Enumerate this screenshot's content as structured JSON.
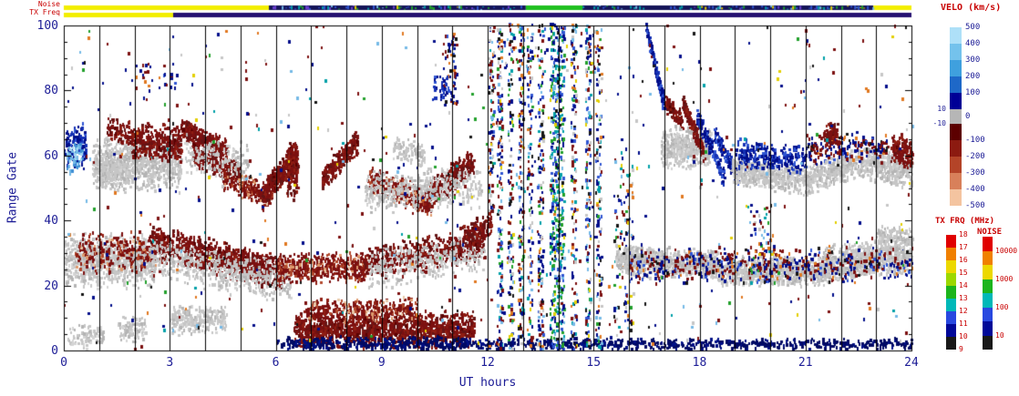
{
  "strips": {
    "noise": {
      "label": "Noise",
      "segments": [
        [
          0.0,
          0.242,
          "#f2ee00"
        ],
        [
          0.242,
          0.545,
          "#141458"
        ],
        [
          0.545,
          0.612,
          "#20c020"
        ],
        [
          0.612,
          0.955,
          "#141458"
        ],
        [
          0.955,
          1.0,
          "#f2ee00"
        ]
      ],
      "speckle_regions": [
        [
          0.242,
          0.545
        ],
        [
          0.612,
          0.955
        ]
      ]
    },
    "tx": {
      "label": "TX Freq",
      "segments": [
        [
          0.0,
          0.129,
          "#f2ee00"
        ],
        [
          0.129,
          1.0,
          "#241070"
        ]
      ],
      "speckle_regions": []
    },
    "speckle_palette": [
      [
        "#2f55d2",
        30
      ],
      [
        "#00a0a8",
        20
      ],
      [
        "#e3cf00",
        10
      ],
      [
        "#22a02c",
        15
      ],
      [
        "#6a3fd0",
        10
      ],
      [
        "#74b9e6",
        15
      ]
    ]
  },
  "colorbars": {
    "velo": {
      "title": "VELO (km/s)",
      "segments": [
        {
          "c": "#aee0f8",
          "h": 18
        },
        {
          "c": "#74c2ec",
          "h": 18
        },
        {
          "c": "#3fa0de",
          "h": 18
        },
        {
          "c": "#1e68c8",
          "h": 18
        },
        {
          "c": "#000096",
          "h": 18
        },
        {
          "c": "#b6b6b6",
          "h": 16
        },
        {
          "c": "#5c0000",
          "h": 18
        },
        {
          "c": "#8c1a10",
          "h": 18
        },
        {
          "c": "#b44428",
          "h": 18
        },
        {
          "c": "#d8805a",
          "h": 18
        },
        {
          "c": "#f4c4a0",
          "h": 18
        }
      ],
      "right_labels": [
        {
          "t": "500",
          "off": 0
        },
        {
          "t": "400",
          "off": 18
        },
        {
          "t": "300",
          "off": 36
        },
        {
          "t": "200",
          "off": 54
        },
        {
          "t": "100",
          "off": 72
        },
        {
          "t": "0",
          "off": 98
        },
        {
          "t": "-100",
          "off": 124
        },
        {
          "t": "-200",
          "off": 142
        },
        {
          "t": "-300",
          "off": 160
        },
        {
          "t": "-400",
          "off": 178
        },
        {
          "t": "-500",
          "off": 196
        }
      ],
      "left_labels": [
        {
          "t": "10",
          "off": 90
        },
        {
          "t": "-10",
          "off": 106
        }
      ]
    },
    "txfrq": {
      "title": "TX FRQ (MHz)",
      "segments": [
        {
          "c": "#e00000",
          "h": 14
        },
        {
          "c": "#f08000",
          "h": 14
        },
        {
          "c": "#ecd800",
          "h": 14
        },
        {
          "c": "#9cd800",
          "h": 14
        },
        {
          "c": "#1cb41c",
          "h": 14
        },
        {
          "c": "#00b8b8",
          "h": 14
        },
        {
          "c": "#2848e0",
          "h": 14
        },
        {
          "c": "#000898",
          "h": 14
        },
        {
          "c": "#181818",
          "h": 14
        }
      ],
      "labels": [
        {
          "t": "18",
          "off": 0
        },
        {
          "t": "17",
          "off": 14
        },
        {
          "t": "16",
          "off": 28
        },
        {
          "t": "15",
          "off": 42
        },
        {
          "t": "14",
          "off": 56
        },
        {
          "t": "13",
          "off": 70
        },
        {
          "t": "12",
          "off": 84
        },
        {
          "t": "11",
          "off": 98
        },
        {
          "t": "10",
          "off": 112
        },
        {
          "t": "9",
          "off": 126
        }
      ]
    },
    "noise": {
      "title": "NOISE",
      "segments": [
        {
          "c": "#e00000",
          "h": 15.5
        },
        {
          "c": "#f08000",
          "h": 15.5
        },
        {
          "c": "#ecd800",
          "h": 15.5
        },
        {
          "c": "#1cb41c",
          "h": 15.5
        },
        {
          "c": "#00b8b8",
          "h": 15.5
        },
        {
          "c": "#2848e0",
          "h": 15.5
        },
        {
          "c": "#000898",
          "h": 15.5
        },
        {
          "c": "#181818",
          "h": 15.5
        }
      ],
      "labels": [
        {
          "t": "10000",
          "off": 15.5
        },
        {
          "t": "1000",
          "off": 46.5
        },
        {
          "t": "100",
          "off": 77.5
        },
        {
          "t": "10",
          "off": 108.5
        }
      ]
    }
  },
  "chart_data": {
    "type": "scatter",
    "title": "",
    "xlabel": "UT hours",
    "ylabel": "Range Gate",
    "xlim": [
      0,
      24
    ],
    "ylim": [
      0,
      100
    ],
    "x_ticks": [
      0,
      3,
      6,
      9,
      12,
      15,
      18,
      21,
      24
    ],
    "y_ticks": [
      0,
      20,
      40,
      60,
      80,
      100
    ],
    "hour_gridlines": true,
    "legend_scales": {
      "velocity_km_s": [
        500,
        400,
        300,
        200,
        100,
        10,
        -10,
        0,
        -100,
        -200,
        -300,
        -400,
        -500
      ],
      "tx_frq_mhz": [
        18,
        17,
        16,
        15,
        14,
        13,
        12,
        11,
        10,
        9
      ],
      "noise": [
        10000,
        1000,
        100,
        10
      ]
    },
    "palettes": {
      "gs": [
        [
          "#c6c6c6",
          60
        ],
        [
          "#b4b4b4",
          25
        ],
        [
          "#d4d4d4",
          15
        ]
      ],
      "nr": [
        [
          "#7c1010",
          55
        ],
        [
          "#641414",
          20
        ],
        [
          "#8f1d12",
          20
        ],
        [
          "#5a0000",
          5
        ]
      ],
      "nrm": [
        [
          "#7c1010",
          55
        ],
        [
          "#8f1d12",
          20
        ],
        [
          "#b24a2e",
          12
        ],
        [
          "#de9a6e",
          8
        ],
        [
          "#e8c8a8",
          5
        ]
      ],
      "pb": [
        [
          "#000d8a",
          55
        ],
        [
          "#1430b4",
          25
        ],
        [
          "#2f55d2",
          20
        ]
      ],
      "pbl": [
        [
          "#3f8fd4",
          40
        ],
        [
          "#74b9e6",
          35
        ],
        [
          "#a6d9f2",
          25
        ]
      ],
      "nv": [
        [
          "#000a64",
          70
        ],
        [
          "#001086",
          30
        ]
      ],
      "mx": [
        [
          "#7c1010",
          18
        ],
        [
          "#000d8a",
          22
        ],
        [
          "#2f55d2",
          10
        ],
        [
          "#74b9e6",
          8
        ],
        [
          "#e07820",
          7
        ],
        [
          "#e3cf00",
          5
        ],
        [
          "#22a02c",
          6
        ],
        [
          "#00a0a8",
          6
        ],
        [
          "#151515",
          8
        ],
        [
          "#c6c6c6",
          10
        ]
      ],
      "mxg": [
        [
          "#22a02c",
          25
        ],
        [
          "#00a0a8",
          18
        ],
        [
          "#2f55d2",
          18
        ],
        [
          "#000d8a",
          15
        ],
        [
          "#74b9e6",
          10
        ],
        [
          "#e3cf00",
          6
        ],
        [
          "#151515",
          8
        ]
      ],
      "rb": [
        [
          "#7c1010",
          40
        ],
        [
          "#000d8a",
          35
        ],
        [
          "#2f55d2",
          10
        ],
        [
          "#151515",
          7
        ],
        [
          "#e07820",
          8
        ]
      ],
      "sp": [
        [
          "#7c1010",
          26
        ],
        [
          "#000d8a",
          26
        ],
        [
          "#74b9e6",
          8
        ],
        [
          "#e07820",
          7
        ],
        [
          "#151515",
          8
        ],
        [
          "#c6c6c6",
          11
        ],
        [
          "#00a0a8",
          5
        ],
        [
          "#22a02c",
          5
        ],
        [
          "#e3cf00",
          4
        ]
      ]
    },
    "cluster_fields": [
      "t_start",
      "t_end",
      "gate_start",
      "gate_end",
      "gate_spread",
      "n_points",
      "palette",
      "uniform_gate"
    ],
    "clusters": [
      [
        0.0,
        0.6,
        62,
        62,
        8,
        120,
        "pb",
        0
      ],
      [
        0.05,
        0.5,
        58,
        60,
        5,
        60,
        "pbl",
        0
      ],
      [
        0.8,
        3.3,
        57,
        57,
        9,
        800,
        "gs",
        0
      ],
      [
        1.0,
        2.2,
        53,
        60,
        6,
        220,
        "gs",
        0
      ],
      [
        1.9,
        3.3,
        64,
        63,
        6,
        330,
        "nr",
        0
      ],
      [
        1.2,
        1.9,
        68,
        66,
        4,
        80,
        "nr",
        0
      ],
      [
        3.3,
        4.6,
        68,
        61,
        4,
        300,
        "nr",
        0
      ],
      [
        3.6,
        5.0,
        60,
        54,
        4,
        250,
        "nr",
        0
      ],
      [
        4.5,
        5.9,
        52,
        47,
        4,
        220,
        "nrm",
        0
      ],
      [
        5.6,
        6.6,
        47,
        60,
        5,
        300,
        "nr",
        0
      ],
      [
        6.3,
        6.6,
        55,
        55,
        10,
        150,
        "nr",
        0
      ],
      [
        7.3,
        8.3,
        52,
        64,
        4,
        250,
        "nr",
        0
      ],
      [
        3.4,
        5.2,
        60,
        57,
        7,
        160,
        "gs",
        0
      ],
      [
        8.6,
        10.4,
        52,
        45,
        5,
        320,
        "nrm",
        0
      ],
      [
        10.2,
        11.6,
        46,
        58,
        5,
        320,
        "nr",
        0
      ],
      [
        8.5,
        11.8,
        48,
        50,
        7,
        420,
        "gs",
        0
      ],
      [
        9.3,
        10.2,
        62,
        60,
        4,
        100,
        "gs",
        0
      ],
      [
        0.0,
        2.6,
        27,
        27,
        9,
        850,
        "gs",
        0
      ],
      [
        0.3,
        2.6,
        30,
        30,
        7,
        260,
        "nrm",
        0
      ],
      [
        2.4,
        6.2,
        33,
        23,
        6,
        950,
        "nr",
        0
      ],
      [
        2.4,
        6.4,
        28,
        20,
        7,
        520,
        "gs",
        0
      ],
      [
        6.0,
        8.6,
        25,
        25,
        5,
        460,
        "nrm",
        0
      ],
      [
        8.4,
        11.9,
        26,
        33,
        6,
        520,
        "nr",
        0
      ],
      [
        8.6,
        11.9,
        24,
        30,
        7,
        300,
        "gs",
        0
      ],
      [
        11.3,
        12.1,
        34,
        38,
        5,
        150,
        "nr",
        0
      ],
      [
        0.1,
        1.1,
        4,
        4,
        4,
        90,
        "gs",
        0
      ],
      [
        1.5,
        2.3,
        6,
        6,
        4,
        90,
        "gs",
        0
      ],
      [
        3.0,
        4.6,
        9,
        9,
        5,
        260,
        "gs",
        0
      ],
      [
        6.5,
        11.6,
        6,
        6,
        6,
        1400,
        "nr",
        0
      ],
      [
        6.8,
        10.0,
        12,
        12,
        4,
        300,
        "nrm",
        0
      ],
      [
        6.3,
        11.8,
        2,
        2,
        2,
        250,
        "nv",
        0
      ],
      [
        11.8,
        24,
        1.5,
        1.5,
        2,
        600,
        "nv",
        0
      ],
      [
        6.0,
        11.8,
        1,
        1,
        1.5,
        150,
        "nv",
        0
      ],
      [
        12.25,
        12.4,
        0,
        100,
        0,
        150,
        "mx",
        1
      ],
      [
        12.55,
        12.7,
        0,
        100,
        0,
        120,
        "mx",
        1
      ],
      [
        12.85,
        13.0,
        0,
        100,
        0,
        150,
        "mx",
        1
      ],
      [
        13.1,
        13.25,
        0,
        100,
        0,
        120,
        "mx",
        1
      ],
      [
        13.4,
        13.55,
        0,
        100,
        0,
        150,
        "mx",
        1
      ],
      [
        13.75,
        14.15,
        0,
        100,
        0,
        480,
        "mxg",
        1
      ],
      [
        14.35,
        14.5,
        0,
        100,
        0,
        130,
        "mx",
        1
      ],
      [
        14.75,
        14.9,
        0,
        100,
        0,
        140,
        "mx",
        1
      ],
      [
        15.05,
        15.2,
        0,
        100,
        0,
        130,
        "mx",
        1
      ],
      [
        12.0,
        12.15,
        40,
        100,
        0,
        90,
        "mx",
        1
      ],
      [
        15.55,
        16.1,
        5,
        60,
        0,
        110,
        "mx",
        1
      ],
      [
        15.6,
        16.35,
        28,
        28,
        4,
        170,
        "gs",
        0
      ],
      [
        15.9,
        18.5,
        27,
        26,
        5,
        700,
        "gs",
        0
      ],
      [
        18.5,
        21.5,
        24,
        24,
        5,
        800,
        "gs",
        0
      ],
      [
        21.5,
        24,
        26,
        29,
        6,
        800,
        "gs",
        0
      ],
      [
        16.0,
        24,
        26,
        26,
        6,
        520,
        "rb",
        0
      ],
      [
        23.0,
        24,
        34,
        34,
        4,
        150,
        "gs",
        0
      ],
      [
        16.45,
        17.0,
        100,
        74,
        3,
        130,
        "pb",
        0
      ],
      [
        17.0,
        17.5,
        76,
        70,
        3,
        90,
        "nr",
        0
      ],
      [
        16.9,
        18.3,
        62,
        62,
        7,
        500,
        "gs",
        0
      ],
      [
        17.5,
        18.1,
        76,
        60,
        3,
        160,
        "nr",
        0
      ],
      [
        17.9,
        18.7,
        72,
        52,
        3,
        170,
        "pb",
        0
      ],
      [
        18.4,
        19.1,
        66,
        52,
        3,
        120,
        "pb",
        0
      ],
      [
        18.9,
        21.0,
        55,
        52,
        5,
        500,
        "gs",
        0
      ],
      [
        21.0,
        22.8,
        52,
        58,
        5,
        420,
        "gs",
        0
      ],
      [
        22.8,
        24,
        57,
        55,
        6,
        350,
        "gs",
        0
      ],
      [
        19.0,
        21.0,
        60,
        58,
        5,
        260,
        "pb",
        0
      ],
      [
        21.0,
        23.3,
        62,
        62,
        5,
        200,
        "rb",
        0
      ],
      [
        23.4,
        24,
        62,
        60,
        6,
        130,
        "nr",
        0
      ],
      [
        19.3,
        20.1,
        20,
        45,
        0,
        70,
        "mx",
        1
      ],
      [
        21.5,
        21.9,
        66,
        66,
        4,
        80,
        "nr",
        0
      ],
      [
        10.7,
        11.1,
        75,
        97,
        0,
        60,
        "rb",
        1
      ],
      [
        10.4,
        10.9,
        76,
        84,
        0,
        40,
        "pb",
        1
      ],
      [
        2.0,
        3.2,
        80,
        88,
        0,
        30,
        "rb",
        1
      ],
      [
        12.0,
        15.3,
        85,
        100,
        0,
        60,
        "mx",
        1
      ],
      [
        0,
        24,
        0,
        100,
        0,
        560,
        "sp",
        1
      ]
    ]
  }
}
